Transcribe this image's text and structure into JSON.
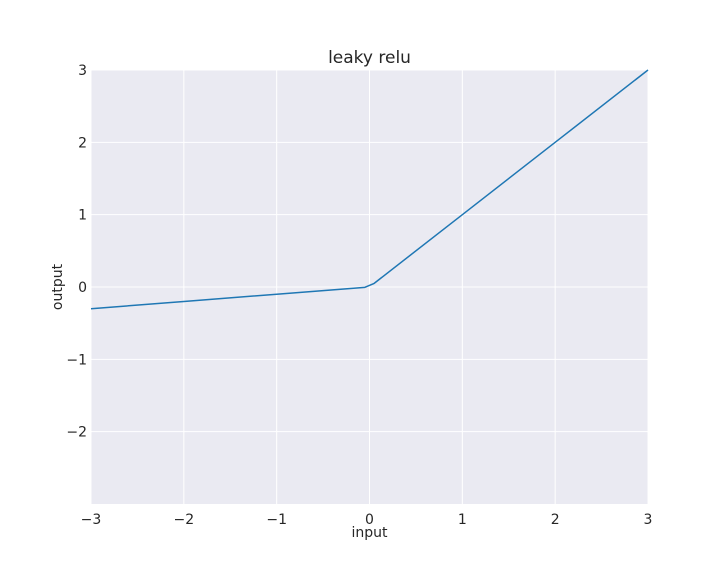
{
  "chart_data": {
    "type": "line",
    "title": "leaky relu",
    "xlabel": "input",
    "ylabel": "output",
    "xlim": [
      -3,
      3
    ],
    "ylim": [
      -3,
      3
    ],
    "x_ticks": [
      -3,
      -2,
      -1,
      0,
      1,
      2,
      3
    ],
    "x_tick_labels": [
      "−3",
      "−2",
      "−1",
      "0",
      "1",
      "2",
      "3"
    ],
    "y_ticks": [
      -2,
      -1,
      0,
      1,
      2,
      3
    ],
    "y_tick_labels": [
      "−2",
      "−1",
      "0",
      "1",
      "2",
      "3"
    ],
    "grid": true,
    "series": [
      {
        "color": "#1f77b4",
        "x": [
          -3,
          -2,
          -1,
          -0.05,
          0.05,
          1,
          2,
          3
        ],
        "y": [
          -0.3,
          -0.2,
          -0.1,
          -0.005,
          0.05,
          1,
          2,
          3
        ]
      }
    ]
  },
  "colors": {
    "plot_background": "#eaeaf2",
    "grid": "#ffffff",
    "line": "#1f77b4"
  }
}
